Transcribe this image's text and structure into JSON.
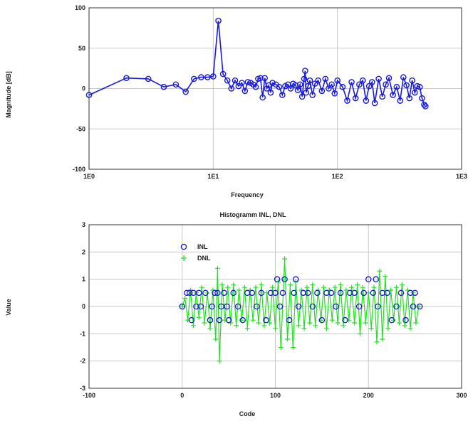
{
  "chart_data": [
    {
      "type": "line",
      "title": "",
      "xlabel": "Frequency",
      "ylabel": "Magnitude [dB]",
      "xscale": "log",
      "xlim": [
        1,
        1000
      ],
      "ylim": [
        -100,
        100
      ],
      "x_tick_labels": [
        "1E0",
        "1E1",
        "1E2",
        "1E3"
      ],
      "y_tick_labels": [
        "100",
        "50",
        "0",
        "-50",
        "-100"
      ],
      "grid": true,
      "colors": {
        "series": "#1a1adc"
      },
      "series": [
        {
          "name": "",
          "marker": "circle",
          "x": [
            1,
            2,
            3,
            4,
            5,
            6,
            7,
            8,
            9,
            10,
            11,
            12,
            13,
            14,
            15,
            16,
            17,
            18,
            19,
            20,
            21,
            22,
            23,
            24,
            25,
            26,
            27,
            28,
            29,
            30,
            32,
            34,
            36,
            38,
            40,
            42,
            44,
            46,
            48,
            50,
            52,
            54,
            55,
            56,
            58,
            60,
            63,
            66,
            70,
            75,
            80,
            85,
            90,
            95,
            100,
            110,
            120,
            130,
            140,
            150,
            160,
            170,
            180,
            190,
            200,
            215,
            230,
            245,
            260,
            280,
            300,
            320,
            340,
            360,
            380,
            400,
            420,
            440,
            460,
            480,
            500,
            512
          ],
          "y": [
            -8,
            13,
            12,
            2,
            5,
            -4,
            12,
            14,
            14,
            15,
            84,
            18,
            10,
            0,
            10,
            3,
            7,
            -3,
            8,
            7,
            5,
            2,
            12,
            13,
            -11,
            13,
            0,
            4,
            -5,
            7,
            5,
            2,
            -8,
            3,
            5,
            0,
            6,
            4,
            -2,
            5,
            -10,
            12,
            22,
            -5,
            3,
            10,
            -8,
            6,
            10,
            -3,
            12,
            0,
            5,
            -6,
            10,
            2,
            -15,
            8,
            -12,
            5,
            10,
            -15,
            3,
            8,
            -18,
            12,
            -10,
            5,
            13,
            -8,
            2,
            -15,
            14,
            4,
            -12,
            10,
            -5,
            3,
            2,
            -12,
            -20,
            -22
          ]
        }
      ]
    },
    {
      "type": "scatter",
      "title": "Histogramm INL, DNL",
      "xlabel": "Code",
      "ylabel": "Value",
      "xlim": [
        -100,
        300
      ],
      "ylim": [
        -3,
        3
      ],
      "x_tick_labels": [
        "-100",
        "0",
        "100",
        "200",
        "300"
      ],
      "y_tick_labels": [
        "3",
        "2",
        "1",
        "0",
        "-1",
        "-2",
        "-3"
      ],
      "grid": true,
      "legend_position": "top-left",
      "colors": {
        "inl": "#1a1ad2",
        "dnl": "#20e020"
      },
      "series": [
        {
          "name": "INL",
          "marker": "circle",
          "x": [
            0,
            5,
            8,
            10,
            12,
            15,
            18,
            20,
            25,
            30,
            32,
            35,
            38,
            40,
            42,
            45,
            48,
            50,
            55,
            60,
            65,
            70,
            75,
            80,
            85,
            90,
            95,
            100,
            102,
            105,
            108,
            110,
            115,
            120,
            122,
            125,
            130,
            135,
            140,
            145,
            150,
            155,
            160,
            165,
            170,
            175,
            180,
            185,
            190,
            195,
            200,
            205,
            208,
            210,
            215,
            220,
            225,
            230,
            235,
            240,
            245,
            248,
            250,
            255
          ],
          "y": [
            0,
            0.5,
            0.5,
            -0.5,
            0.5,
            0,
            0.5,
            0,
            0.5,
            -0.5,
            0,
            0.5,
            0.5,
            -0.5,
            0,
            0.5,
            0,
            -0.5,
            0.5,
            0,
            -0.5,
            0.5,
            0.5,
            0,
            0.5,
            -0.5,
            0.5,
            0.5,
            1,
            0,
            0.5,
            1,
            -0.5,
            0.5,
            1,
            0,
            0.5,
            0.5,
            0,
            0.5,
            -0.5,
            0.5,
            0.5,
            0,
            0.5,
            -0.5,
            0.5,
            0.5,
            0,
            0.5,
            1,
            0.5,
            1,
            0,
            0.5,
            0.5,
            -0.5,
            0,
            0.5,
            -0.5,
            0.5,
            0,
            0.5,
            0
          ]
        },
        {
          "name": "DNL",
          "marker": "plus",
          "x": [
            0,
            3,
            6,
            9,
            12,
            15,
            18,
            21,
            24,
            27,
            30,
            33,
            36,
            38,
            40,
            43,
            46,
            49,
            52,
            55,
            58,
            61,
            64,
            67,
            70,
            73,
            76,
            79,
            82,
            85,
            88,
            91,
            94,
            97,
            100,
            103,
            106,
            110,
            113,
            116,
            119,
            122,
            125,
            128,
            131,
            134,
            137,
            140,
            143,
            146,
            149,
            152,
            155,
            158,
            161,
            164,
            167,
            170,
            173,
            176,
            179,
            182,
            185,
            188,
            191,
            194,
            197,
            200,
            203,
            206,
            209,
            212,
            215,
            218,
            221,
            224,
            227,
            230,
            233,
            236,
            239,
            242,
            245,
            248,
            251,
            254
          ],
          "y": [
            0,
            0.3,
            -0.5,
            0.6,
            -0.7,
            0.5,
            -0.4,
            0.7,
            -0.6,
            0.5,
            -0.8,
            0.6,
            -1.2,
            1.4,
            -2.0,
            0.8,
            -0.5,
            0.7,
            -0.6,
            0.8,
            -0.7,
            0.6,
            -0.5,
            0.7,
            -0.8,
            0.6,
            -0.5,
            0.7,
            -0.6,
            0.8,
            -0.7,
            0.5,
            -0.6,
            0.7,
            -0.8,
            0.9,
            -1.5,
            1.75,
            -1.2,
            0.8,
            -1.5,
            0.9,
            -0.7,
            0.6,
            -0.8,
            0.7,
            -0.6,
            0.8,
            -0.7,
            0.6,
            -0.5,
            0.7,
            -0.8,
            0.6,
            -0.5,
            0.7,
            -0.6,
            0.8,
            -0.7,
            0.6,
            -0.5,
            0.7,
            -0.6,
            0.8,
            -1.0,
            0.7,
            -0.6,
            0.5,
            -0.8,
            0.7,
            -1.3,
            1.3,
            -1.2,
            1.1,
            -0.8,
            0.6,
            -0.5,
            0.7,
            -0.6,
            0.8,
            -0.7,
            0.6,
            -0.8,
            0.5,
            -0.6,
            0
          ]
        }
      ]
    }
  ]
}
